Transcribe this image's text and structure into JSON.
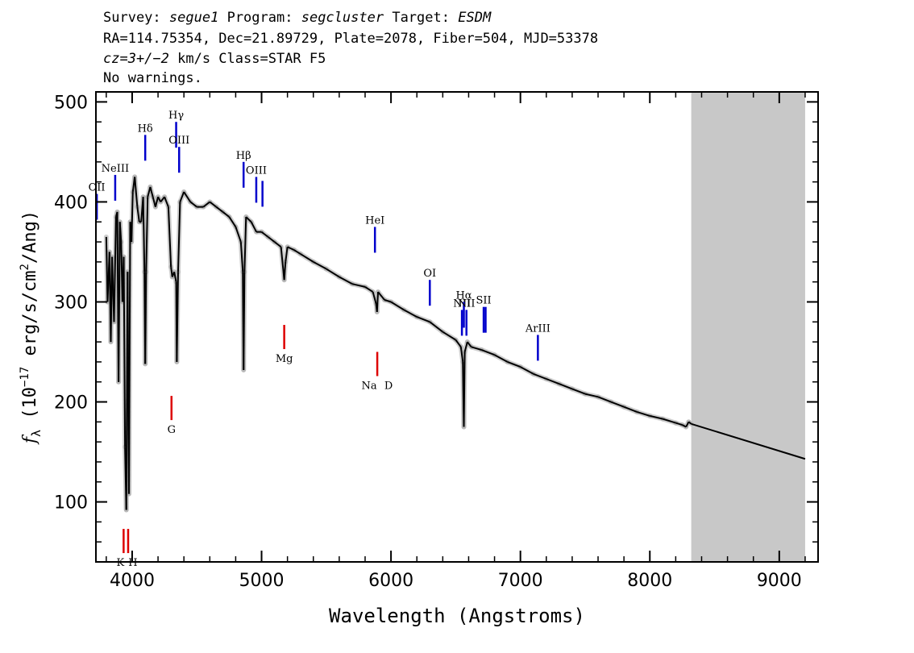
{
  "header": {
    "survey_label": "Survey:",
    "survey": "segue1",
    "program_label": "Program:",
    "program": "segcluster",
    "target_label": "Target:",
    "target": "ESDM",
    "line2": "RA=114.75354, Dec=21.89729, Plate=2078, Fiber=504, MJD=53378",
    "cz": "cz=3+/−2",
    "cz_rest": " km/s Class=STAR F5",
    "warnings": "No warnings."
  },
  "chart_data": {
    "type": "line",
    "title": "",
    "xlabel": "Wavelength (Angstroms)",
    "ylabel": "fλ (10^-17 erg/s/cm²/Ang)",
    "xlim": [
      3720,
      9300
    ],
    "ylim": [
      40,
      510
    ],
    "xticks": [
      4000,
      5000,
      6000,
      7000,
      8000,
      9000
    ],
    "yticks": [
      100,
      200,
      300,
      400,
      500
    ],
    "grid": false,
    "masked_region": [
      8320,
      9200
    ],
    "series": [
      {
        "color": "#000000",
        "x": [
          3800,
          3810,
          3825,
          3835,
          3845,
          3860,
          3875,
          3885,
          3895,
          3905,
          3915,
          3925,
          3935,
          3945,
          3955,
          3965,
          3975,
          3985,
          3995,
          4005,
          4020,
          4040,
          4055,
          4070,
          4085,
          4095,
          4101,
          4108,
          4120,
          4140,
          4160,
          4180,
          4200,
          4220,
          4250,
          4280,
          4300,
          4310,
          4325,
          4340,
          4345,
          4355,
          4370,
          4400,
          4450,
          4500,
          4550,
          4600,
          4650,
          4700,
          4750,
          4800,
          4840,
          4855,
          4861,
          4868,
          4880,
          4920,
          4960,
          5000,
          5050,
          5100,
          5150,
          5175,
          5185,
          5200,
          5250,
          5300,
          5400,
          5500,
          5600,
          5700,
          5800,
          5860,
          5885,
          5892,
          5900,
          5950,
          6000,
          6100,
          6200,
          6300,
          6400,
          6500,
          6540,
          6555,
          6563,
          6570,
          6590,
          6620,
          6700,
          6800,
          6900,
          7000,
          7100,
          7200,
          7300,
          7400,
          7500,
          7600,
          7700,
          7800,
          7900,
          8000,
          8100,
          8200,
          8250,
          8280,
          8300,
          8320,
          9200
        ],
        "y": [
          365,
          300,
          350,
          260,
          345,
          280,
          385,
          390,
          220,
          380,
          360,
          300,
          345,
          155,
          92,
          330,
          108,
          380,
          360,
          410,
          425,
          395,
          380,
          380,
          405,
          330,
          238,
          330,
          405,
          415,
          405,
          395,
          405,
          400,
          405,
          395,
          335,
          325,
          330,
          320,
          240,
          330,
          400,
          410,
          400,
          395,
          395,
          400,
          395,
          390,
          385,
          375,
          360,
          330,
          232,
          330,
          385,
          380,
          370,
          370,
          365,
          360,
          355,
          322,
          340,
          355,
          352,
          348,
          340,
          333,
          325,
          318,
          315,
          310,
          298,
          290,
          310,
          302,
          300,
          292,
          285,
          280,
          270,
          262,
          255,
          240,
          175,
          250,
          260,
          255,
          252,
          247,
          240,
          235,
          228,
          223,
          218,
          213,
          208,
          205,
          200,
          195,
          190,
          186,
          183,
          179,
          177,
          175,
          180,
          178,
          143
        ]
      }
    ],
    "emission_lines": [
      {
        "label": "OII",
        "wavelength": 3727,
        "flux": 408
      },
      {
        "label": "NeIII",
        "wavelength": 3869,
        "flux": 427
      },
      {
        "label": "Hδ",
        "wavelength": 4101,
        "flux": 467
      },
      {
        "label": "Hγ",
        "wavelength": 4340,
        "flux": 480
      },
      {
        "label": "OIII",
        "wavelength": 4363,
        "flux": 455
      },
      {
        "label": "Hβ",
        "wavelength": 4861,
        "flux": 440
      },
      {
        "label": "OIII",
        "wavelength": 4959,
        "flux": 425
      },
      {
        "label": "OIII",
        "wavelength": 5007,
        "flux": 421
      },
      {
        "label": "HeI",
        "wavelength": 5876,
        "flux": 375
      },
      {
        "label": "OI",
        "wavelength": 6300,
        "flux": 322
      },
      {
        "label": "NII",
        "wavelength": 6548,
        "flux": 292
      },
      {
        "label": "Hα",
        "wavelength": 6563,
        "flux": 300
      },
      {
        "label": "NII",
        "wavelength": 6583,
        "flux": 292
      },
      {
        "label": "SII",
        "wavelength": 6716,
        "flux": 295
      },
      {
        "label": "SII",
        "wavelength": 6731,
        "flux": 295
      },
      {
        "label": "ArIII",
        "wavelength": 7135,
        "flux": 267
      }
    ],
    "absorption_lines": [
      {
        "label": "K",
        "wavelength": 3934,
        "flux": 73
      },
      {
        "label": "H",
        "wavelength": 3969,
        "flux": 73
      },
      {
        "label": "G",
        "wavelength": 4304,
        "flux": 206
      },
      {
        "label": "Mg",
        "wavelength": 5175,
        "flux": 277
      },
      {
        "label": "Na",
        "wavelength": 5894,
        "flux": 250
      },
      {
        "label": "D",
        "wavelength": 5894,
        "flux": 250
      }
    ],
    "colors": {
      "emission": "#0000cc",
      "absorption": "#dd0000",
      "mask": "#c8c8c8",
      "error": "#a8a8a8"
    }
  }
}
